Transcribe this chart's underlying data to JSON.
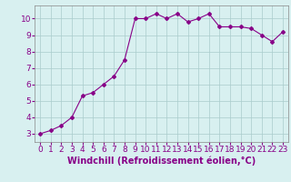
{
  "x": [
    0,
    1,
    2,
    3,
    4,
    5,
    6,
    7,
    8,
    9,
    10,
    11,
    12,
    13,
    14,
    15,
    16,
    17,
    18,
    19,
    20,
    21,
    22,
    23
  ],
  "y": [
    3.0,
    3.2,
    3.5,
    4.0,
    5.3,
    5.5,
    6.0,
    6.5,
    7.5,
    10.0,
    10.0,
    10.3,
    10.0,
    10.3,
    9.8,
    10.0,
    10.3,
    9.5,
    9.5,
    9.5,
    9.4,
    9.0,
    8.6,
    9.2
  ],
  "line_color": "#880088",
  "marker": "D",
  "marker_size": 2.0,
  "background_color": "#d8f0f0",
  "grid_color": "#aacccc",
  "tick_color": "#880088",
  "xlabel": "Windchill (Refroidissement éolien,°C)",
  "xlabel_color": "#880088",
  "ylabel_ticks": [
    3,
    4,
    5,
    6,
    7,
    8,
    9,
    10
  ],
  "xlim": [
    -0.5,
    23.5
  ],
  "ylim": [
    2.5,
    10.8
  ],
  "tick_fontsize": 6.5,
  "xlabel_fontsize": 7
}
